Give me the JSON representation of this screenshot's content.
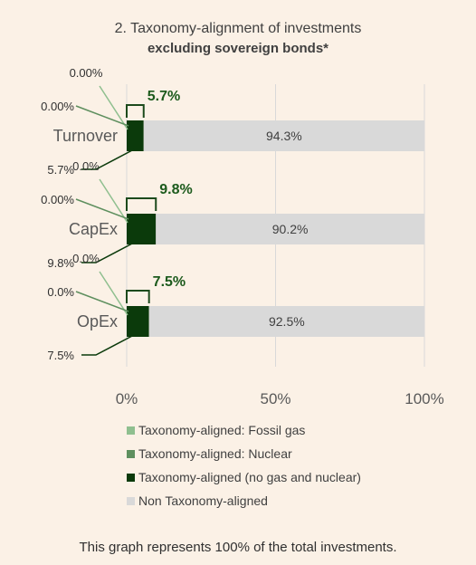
{
  "chart_data": {
    "type": "bar",
    "orientation": "horizontal",
    "stacked": true,
    "title": "2. Taxonomy-alignment of investments",
    "subtitle": "excluding sovereign bonds*",
    "categories": [
      "Turnover",
      "CapEx",
      "OpEx"
    ],
    "series": [
      {
        "name": "Taxonomy-aligned: Fossil gas",
        "color": "#8fbf8f",
        "values": [
          0.0,
          0.0,
          0.0
        ],
        "labels": [
          "0.00%",
          "0.0%",
          "0.0%"
        ]
      },
      {
        "name": "Taxonomy-aligned: Nuclear",
        "color": "#5e8f5e",
        "values": [
          0.0,
          0.0,
          0.0
        ],
        "labels": [
          "0.00%",
          "0.00%",
          "0.0%"
        ]
      },
      {
        "name": "Taxonomy-aligned (no gas and nuclear)",
        "color": "#0b3a0b",
        "values": [
          5.7,
          9.8,
          7.5
        ],
        "labels": [
          "5.7%",
          "9.8%",
          "7.5%"
        ]
      },
      {
        "name": "Non Taxonomy-aligned",
        "color": "#d9d9d9",
        "values": [
          94.3,
          90.2,
          92.5
        ],
        "labels": [
          "94.3%",
          "90.2%",
          "92.5%"
        ]
      }
    ],
    "aligned_totals": [
      "5.7%",
      "9.8%",
      "7.5%"
    ],
    "x_ticks": [
      "0%",
      "50%",
      "100%"
    ],
    "xlim": [
      0,
      100
    ],
    "grid": true,
    "legend_position": "bottom"
  },
  "footnote": "This graph represents 100% of the total investments."
}
